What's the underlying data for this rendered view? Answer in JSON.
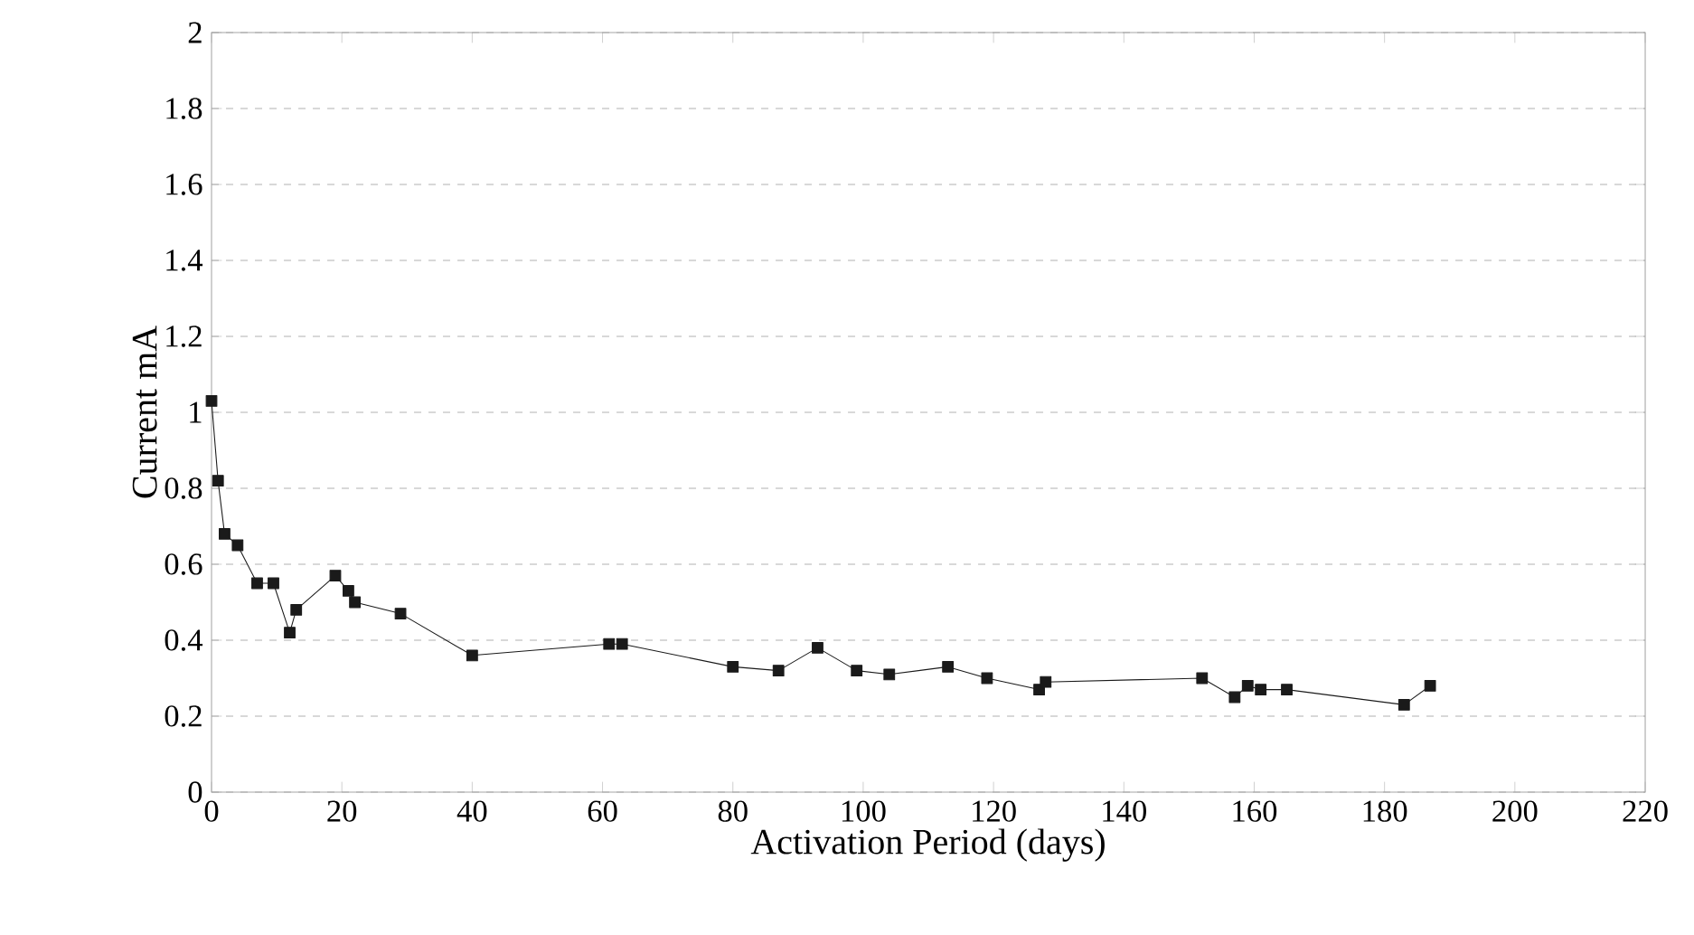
{
  "chart_data": {
    "type": "line",
    "xlabel": "Activation Period (days)",
    "ylabel": "Current mA",
    "x": [
      0,
      1,
      2,
      4,
      7,
      9.5,
      12,
      13,
      19,
      21,
      22,
      29,
      40,
      61,
      63,
      80,
      87,
      93,
      99,
      104,
      113,
      119,
      127,
      128,
      152,
      157,
      159,
      161,
      165,
      183,
      187
    ],
    "values": [
      1.03,
      0.82,
      0.68,
      0.65,
      0.55,
      0.55,
      0.42,
      0.48,
      0.57,
      0.53,
      0.5,
      0.47,
      0.36,
      0.39,
      0.39,
      0.33,
      0.32,
      0.38,
      0.32,
      0.31,
      0.33,
      0.3,
      0.27,
      0.29,
      0.3,
      0.25,
      0.28,
      0.27,
      0.27,
      0.23,
      0.28
    ],
    "color": "#1a1a1a",
    "marker": "square",
    "line_style": "solid",
    "xlim": [
      0,
      220
    ],
    "xticks": [
      0,
      20,
      40,
      60,
      80,
      100,
      120,
      140,
      160,
      180,
      200,
      220
    ],
    "ylim": [
      0,
      2
    ],
    "yticks": [
      0,
      {
        "value": 0.2,
        "label": "0.2"
      },
      {
        "value": 0.4,
        "label": "0.4"
      },
      {
        "value": 0.6,
        "label": "0.6"
      },
      {
        "value": 0.8,
        "label": "0.8"
      },
      1,
      {
        "value": 1.2,
        "label": "1.2"
      },
      {
        "value": 1.4,
        "label": "1.4"
      },
      {
        "value": 1.6,
        "label": "1.6"
      },
      {
        "value": 1.8,
        "label": "1.8"
      },
      2
    ],
    "grid": "y"
  }
}
